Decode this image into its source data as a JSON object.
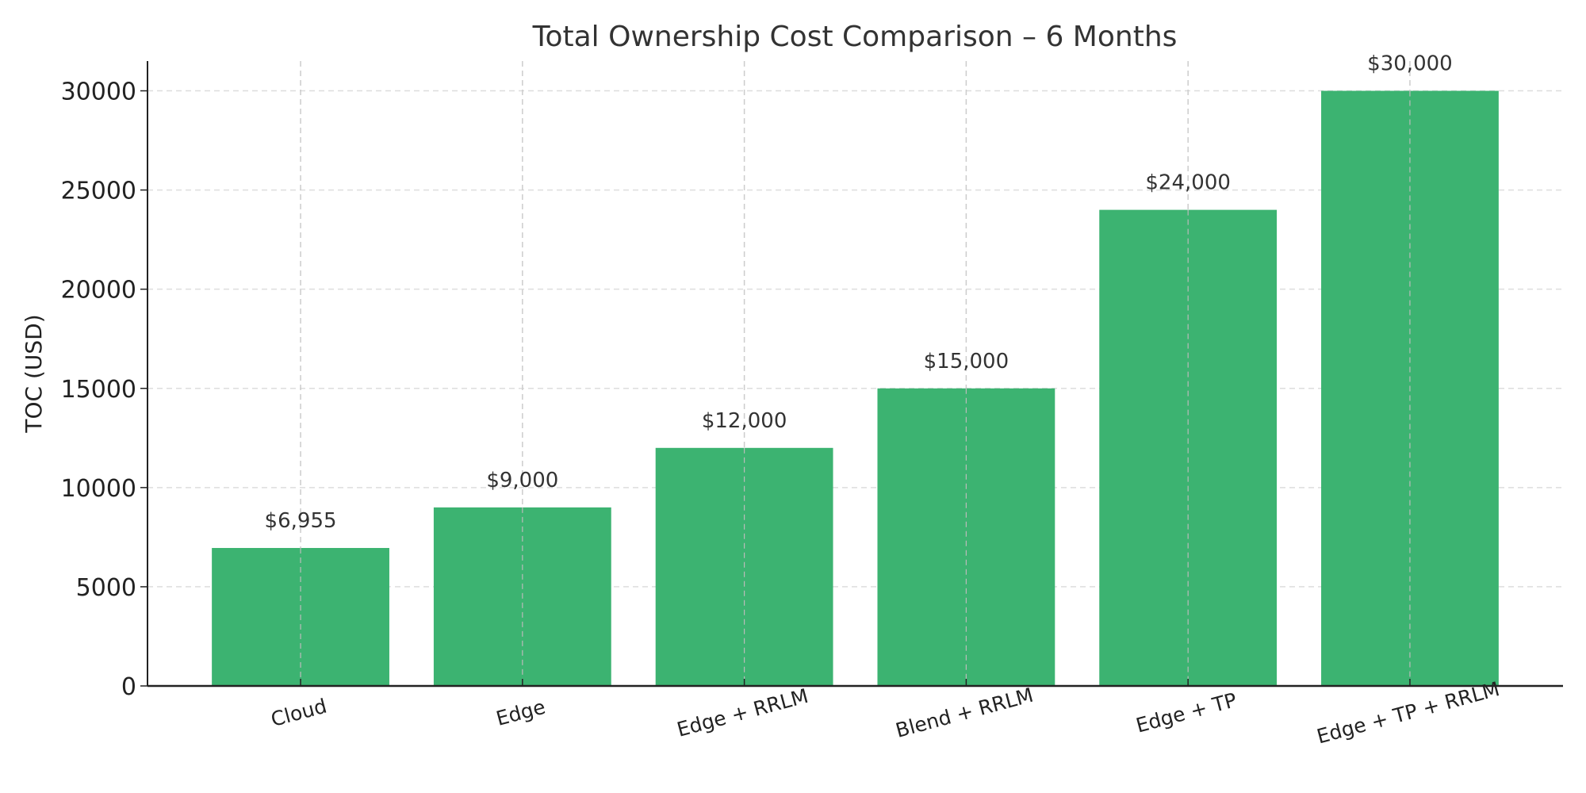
{
  "chart_data": {
    "type": "bar",
    "title": "Total Ownership Cost Comparison – 6 Months",
    "xlabel": "",
    "ylabel": "TOC (USD)",
    "categories": [
      "Cloud",
      "Edge",
      "Edge + RRLM",
      "Blend + RRLM",
      "Edge + TP",
      "Edge + TP + RRLM"
    ],
    "values": [
      6955,
      9000,
      12000,
      15000,
      24000,
      30000
    ],
    "data_labels": [
      "$6,955",
      "$9,000",
      "$12,000",
      "$15,000",
      "$24,000",
      "$30,000"
    ],
    "ylim": [
      0,
      31500
    ],
    "yticks": [
      0,
      5000,
      10000,
      15000,
      20000,
      25000,
      30000
    ],
    "ytick_labels": [
      "0",
      "5000",
      "10000",
      "15000",
      "20000",
      "25000",
      "30000"
    ],
    "grid": true,
    "bar_color": "#3cb371",
    "legend": "none"
  }
}
